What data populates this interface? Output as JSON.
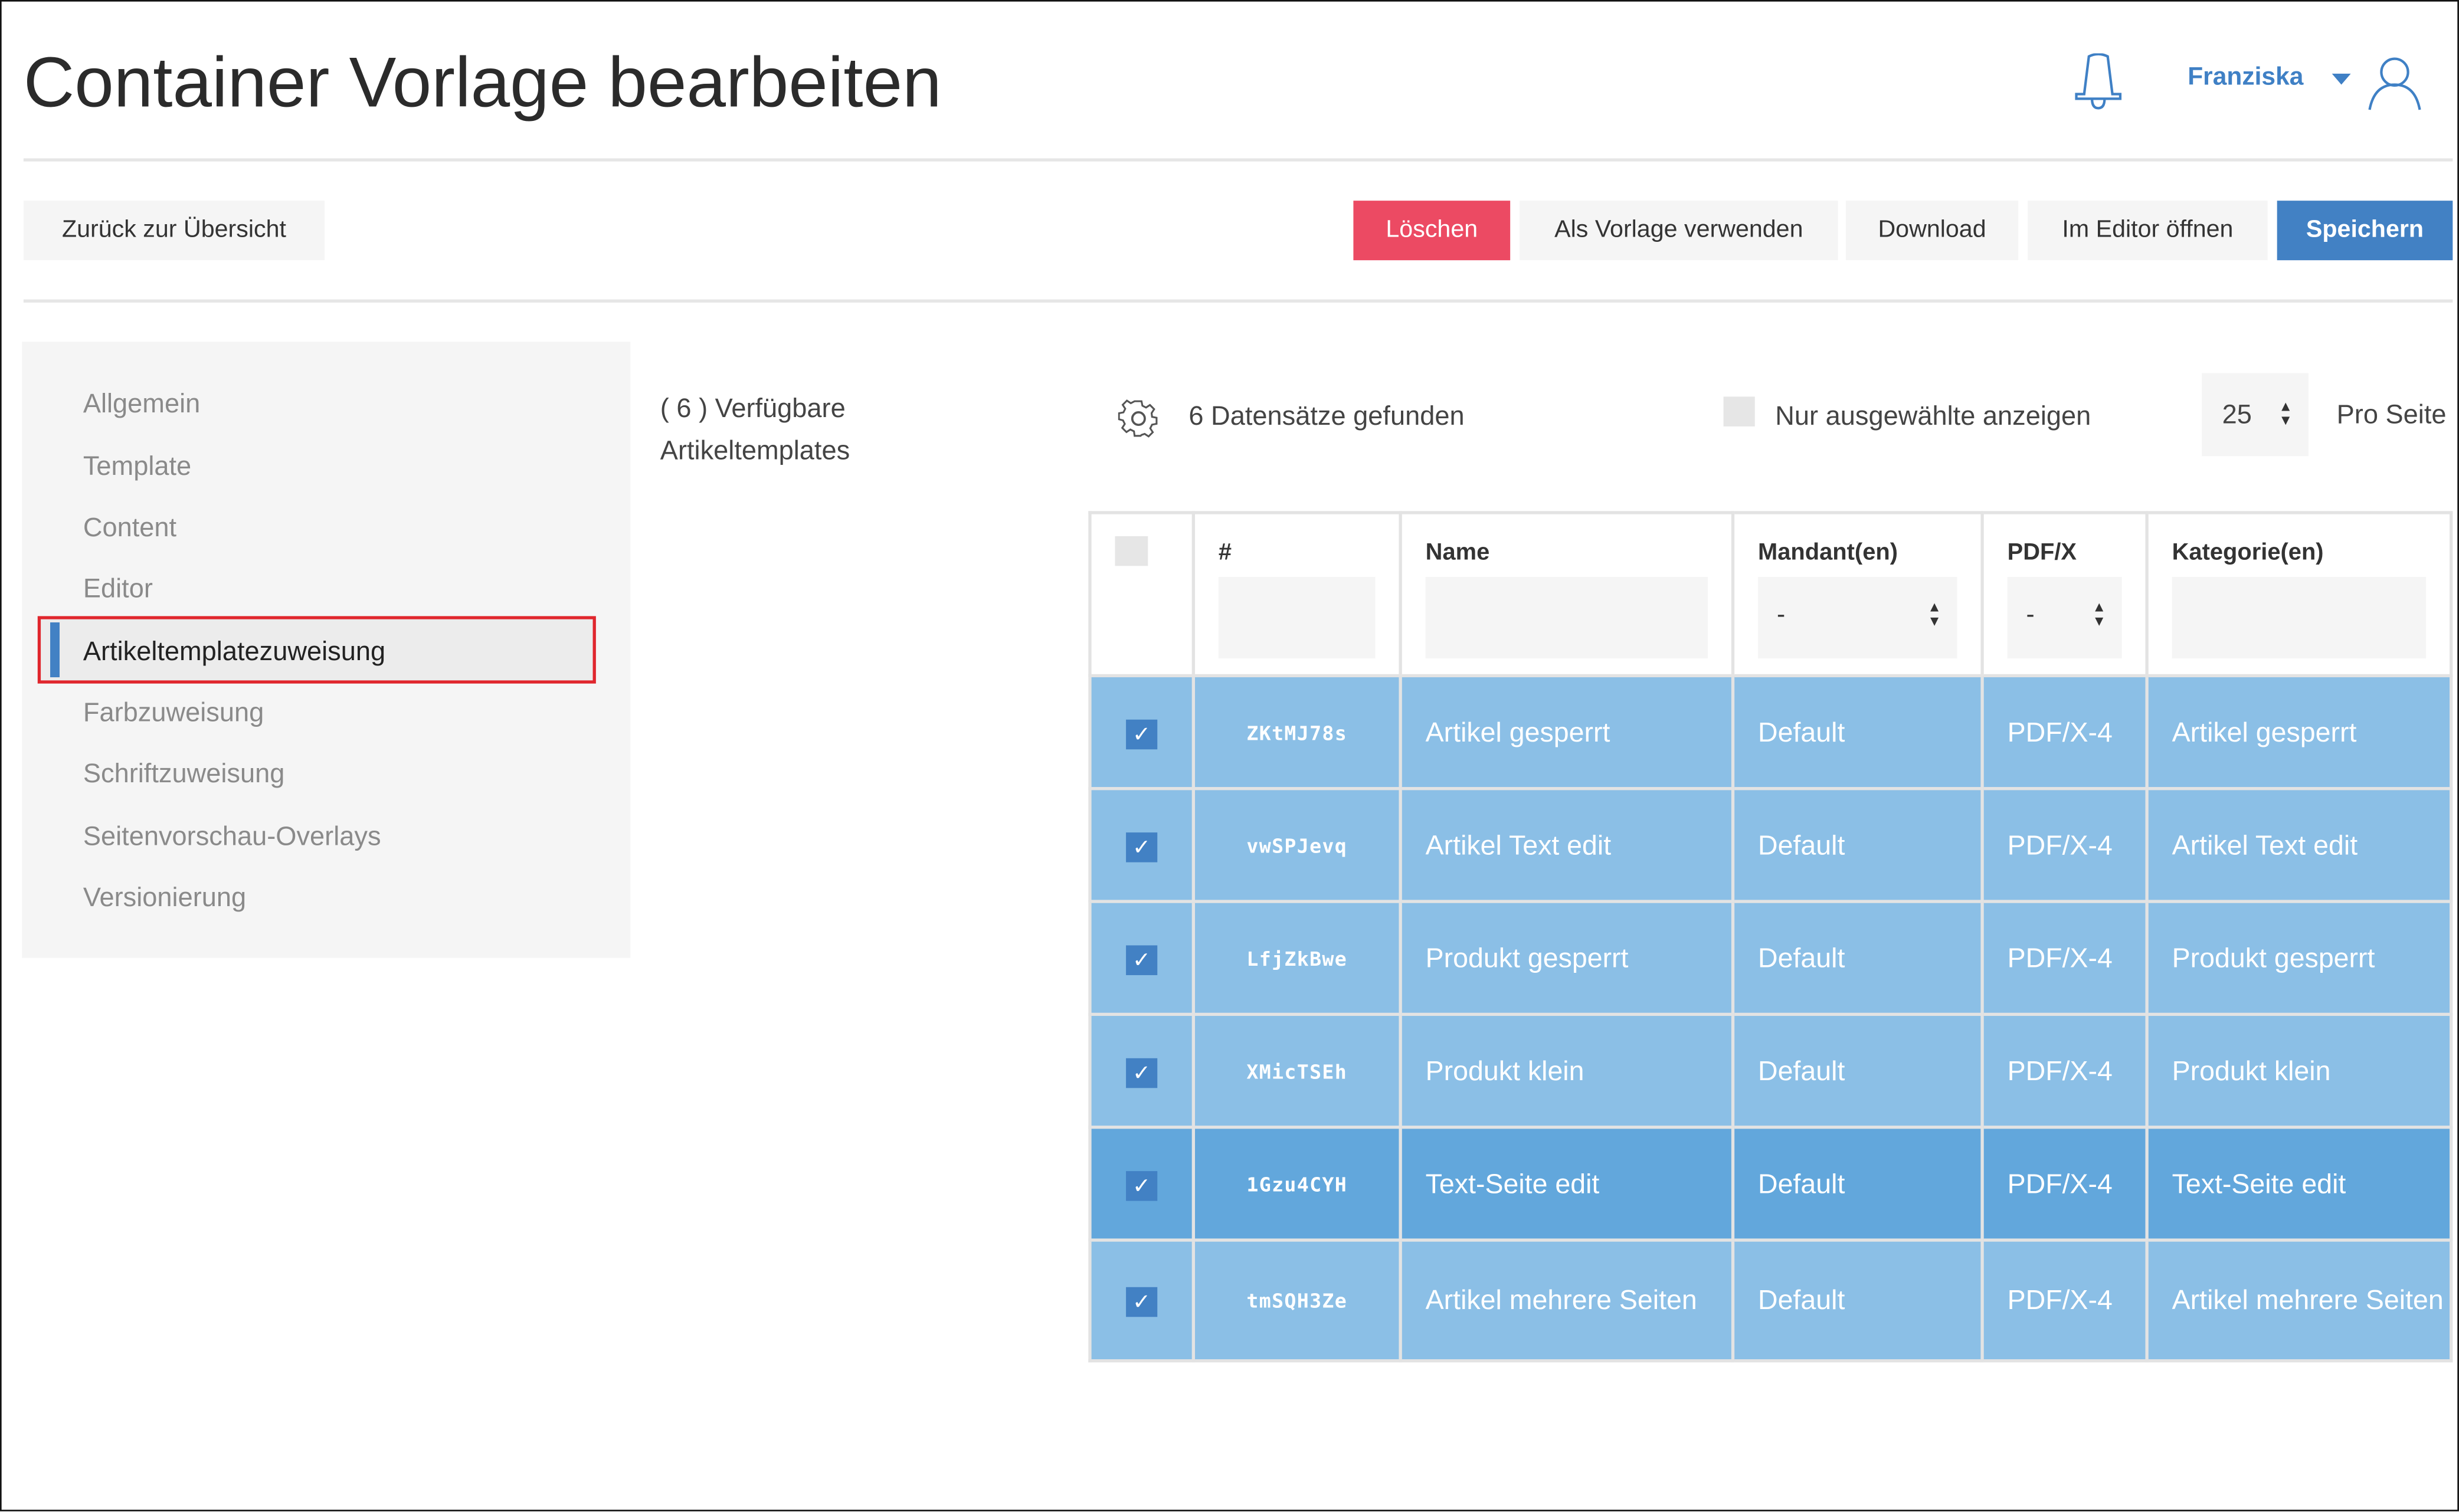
{
  "header": {
    "title": "Container Vorlage bearbeiten",
    "user_name": "Franziska",
    "icons": [
      "bell-icon",
      "caret-down-icon",
      "user-icon"
    ]
  },
  "toolbar": {
    "back": "Zurück zur Übersicht",
    "delete": "Löschen",
    "use_as_template": "Als Vorlage verwenden",
    "download": "Download",
    "open_editor": "Im Editor öffnen",
    "save": "Speichern"
  },
  "colors": {
    "accent": "#4281c4",
    "danger": "#ec4a63",
    "row": "#8bbfe6",
    "row_selected": "#62a7dc"
  },
  "sidebar": {
    "items": [
      {
        "label": "Allgemein"
      },
      {
        "label": "Template"
      },
      {
        "label": "Content"
      },
      {
        "label": "Editor"
      },
      {
        "label": "Artikeltemplatezuweisung",
        "active": true
      },
      {
        "label": "Farbzuweisung"
      },
      {
        "label": "Schriftzuweisung"
      },
      {
        "label": "Seitenvorschau-Overlays"
      },
      {
        "label": "Versionierung"
      }
    ]
  },
  "main": {
    "available_line1": "( 6 ) Verfügbare",
    "available_line2": "Artikeltemplates",
    "records_found": "6 Datensätze gefunden",
    "only_selected_label": "Nur ausgewählte anzeigen",
    "only_selected": false,
    "per_page_value": "25",
    "per_page_label": "Pro Seite",
    "table": {
      "columns": [
        "#",
        "Name",
        "Mandant(en)",
        "PDF/X",
        "Kategorie(en)"
      ],
      "filters": {
        "mandant": "-",
        "pdfx": "-"
      },
      "rows": [
        {
          "id": "ZKtMJ78s",
          "name": "Artikel gesperrt",
          "mandant": "Default",
          "pdfx": "PDF/X-4",
          "kategorie": "Artikel gesperrt",
          "checked": true
        },
        {
          "id": "vwSPJevq",
          "name": "Artikel Text edit",
          "mandant": "Default",
          "pdfx": "PDF/X-4",
          "kategorie": "Artikel Text edit",
          "checked": true
        },
        {
          "id": "LfjZkBwe",
          "name": "Produkt gesperrt",
          "mandant": "Default",
          "pdfx": "PDF/X-4",
          "kategorie": "Produkt gesperrt",
          "checked": true
        },
        {
          "id": "XMicTSEh",
          "name": "Produkt klein",
          "mandant": "Default",
          "pdfx": "PDF/X-4",
          "kategorie": "Produkt klein",
          "checked": true
        },
        {
          "id": "1Gzu4CYH",
          "name": "Text-Seite edit",
          "mandant": "Default",
          "pdfx": "PDF/X-4",
          "kategorie": "Text-Seite edit",
          "checked": true,
          "highlighted": true
        },
        {
          "id": "tmSQH3Ze",
          "name": "Artikel mehrere Seiten",
          "mandant": "Default",
          "pdfx": "PDF/X-4",
          "kategorie": "Artikel mehrere Seiten",
          "checked": true
        }
      ]
    }
  }
}
